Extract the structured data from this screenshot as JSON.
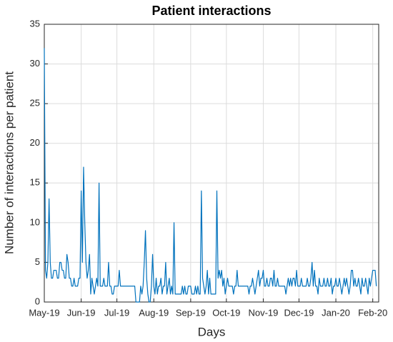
{
  "chart_data": {
    "type": "line",
    "title": "Patient interactions",
    "xlabel": "Days",
    "ylabel": "Number of interactions per patient",
    "color": "#0072bd",
    "grid": true,
    "xlim": [
      0,
      281
    ],
    "xticks": [
      {
        "value": 0,
        "label": "May-19"
      },
      {
        "value": 31,
        "label": "Jun-19"
      },
      {
        "value": 61,
        "label": "Jul-19"
      },
      {
        "value": 92,
        "label": "Aug-19"
      },
      {
        "value": 123,
        "label": "Sep-19"
      },
      {
        "value": 153,
        "label": "Oct-19"
      },
      {
        "value": 184,
        "label": "Nov-19"
      },
      {
        "value": 214,
        "label": "Dec-19"
      },
      {
        "value": 245,
        "label": "Jan-20"
      },
      {
        "value": 276,
        "label": "Feb-20"
      }
    ],
    "ylim": [
      0,
      35
    ],
    "yticks": [
      0,
      5,
      10,
      15,
      20,
      25,
      30,
      35
    ],
    "x": [
      0,
      1,
      2,
      3,
      4,
      5,
      6,
      7,
      8,
      9,
      10,
      11,
      12,
      13,
      14,
      15,
      16,
      17,
      18,
      19,
      20,
      21,
      22,
      23,
      24,
      25,
      26,
      27,
      28,
      29,
      30,
      31,
      32,
      33,
      34,
      35,
      36,
      37,
      38,
      39,
      40,
      41,
      42,
      43,
      44,
      45,
      46,
      47,
      48,
      49,
      50,
      51,
      52,
      53,
      54,
      55,
      56,
      57,
      58,
      59,
      60,
      61,
      62,
      63,
      64,
      65,
      66,
      67,
      68,
      69,
      70,
      71,
      72,
      73,
      74,
      75,
      76,
      77,
      78,
      79,
      80,
      81,
      82,
      83,
      84,
      85,
      86,
      87,
      88,
      89,
      90,
      91,
      92,
      93,
      94,
      95,
      96,
      97,
      98,
      99,
      100,
      101,
      102,
      103,
      104,
      105,
      106,
      107,
      108,
      109,
      110,
      111,
      112,
      113,
      114,
      115,
      116,
      117,
      118,
      119,
      120,
      121,
      122,
      123,
      124,
      125,
      126,
      127,
      128,
      129,
      130,
      131,
      132,
      133,
      134,
      135,
      136,
      137,
      138,
      139,
      140,
      141,
      142,
      143,
      144,
      145,
      146,
      147,
      148,
      149,
      150,
      151,
      152,
      153,
      154,
      155,
      156,
      157,
      158,
      159,
      160,
      161,
      162,
      163,
      164,
      165,
      166,
      167,
      168,
      169,
      170,
      171,
      172,
      173,
      174,
      175,
      176,
      177,
      178,
      179,
      180,
      181,
      182,
      183,
      184,
      185,
      186,
      187,
      188,
      189,
      190,
      191,
      192,
      193,
      194,
      195,
      196,
      197,
      198,
      199,
      200,
      201,
      202,
      203,
      204,
      205,
      206,
      207,
      208,
      209,
      210,
      211,
      212,
      213,
      214,
      215,
      216,
      217,
      218,
      219,
      220,
      221,
      222,
      223,
      224,
      225,
      226,
      227,
      228,
      229,
      230,
      231,
      232,
      233,
      234,
      235,
      236,
      237,
      238,
      239,
      240,
      241,
      242,
      243,
      244,
      245,
      246,
      247,
      248,
      249,
      250,
      251,
      252,
      253,
      254,
      255,
      256,
      257,
      258,
      259,
      260,
      261,
      262,
      263,
      264,
      265,
      266,
      267,
      268,
      269,
      270,
      271,
      272,
      273,
      274,
      275,
      276,
      277,
      278,
      279
    ],
    "values": [
      32,
      4,
      3,
      5,
      13,
      5,
      3,
      3,
      4,
      4,
      4,
      3,
      3,
      5,
      5,
      4,
      4,
      3,
      3,
      6,
      5,
      3,
      3,
      2,
      2,
      3,
      2,
      2,
      2,
      3,
      3,
      14,
      5,
      17,
      10,
      5,
      3,
      4,
      6,
      1,
      3,
      2,
      1,
      2,
      3,
      2,
      15,
      2,
      2,
      2,
      3,
      2,
      2,
      2,
      5,
      2,
      2,
      1,
      1,
      2,
      2,
      2,
      2,
      4,
      2,
      2,
      2,
      2,
      2,
      2,
      2,
      2,
      2,
      2,
      2,
      2,
      2,
      0,
      0,
      0,
      0,
      2,
      1,
      2,
      5,
      9,
      3,
      1,
      0,
      0,
      2,
      6,
      2,
      1,
      3,
      1,
      2,
      2,
      3,
      1,
      2,
      2,
      5,
      1,
      2,
      3,
      1,
      2,
      1,
      10,
      1,
      1,
      1,
      1,
      1,
      1,
      2,
      1,
      2,
      1,
      1,
      2,
      2,
      2,
      1,
      1,
      1,
      2,
      1,
      2,
      1,
      1,
      14,
      3,
      2,
      1,
      2,
      4,
      1,
      3,
      1,
      1,
      1,
      1,
      1,
      14,
      3,
      4,
      3,
      4,
      2,
      3,
      1,
      2,
      3,
      2,
      2,
      2,
      2,
      1,
      2,
      2,
      4,
      2,
      2,
      2,
      2,
      2,
      2,
      2,
      2,
      2,
      1,
      2,
      2,
      3,
      2,
      1,
      2,
      3,
      4,
      2,
      3,
      3,
      4,
      2,
      2,
      3,
      2,
      2,
      3,
      3,
      2,
      4,
      2,
      2,
      3,
      2,
      2,
      2,
      2,
      2,
      2,
      1,
      2,
      3,
      2,
      3,
      2,
      3,
      3,
      2,
      4,
      2,
      2,
      2,
      3,
      2,
      2,
      2,
      2,
      3,
      2,
      2,
      3,
      5,
      2,
      4,
      2,
      2,
      1,
      3,
      2,
      2,
      2,
      3,
      2,
      2,
      3,
      2,
      2,
      3,
      1,
      2,
      2,
      3,
      2,
      2,
      3,
      2,
      1,
      2,
      3,
      2,
      3,
      2,
      1,
      2,
      4,
      4,
      2,
      3,
      2,
      2,
      3,
      2,
      1,
      3,
      2,
      2,
      3,
      2,
      1,
      3,
      2,
      3,
      4,
      4,
      4,
      2
    ]
  }
}
